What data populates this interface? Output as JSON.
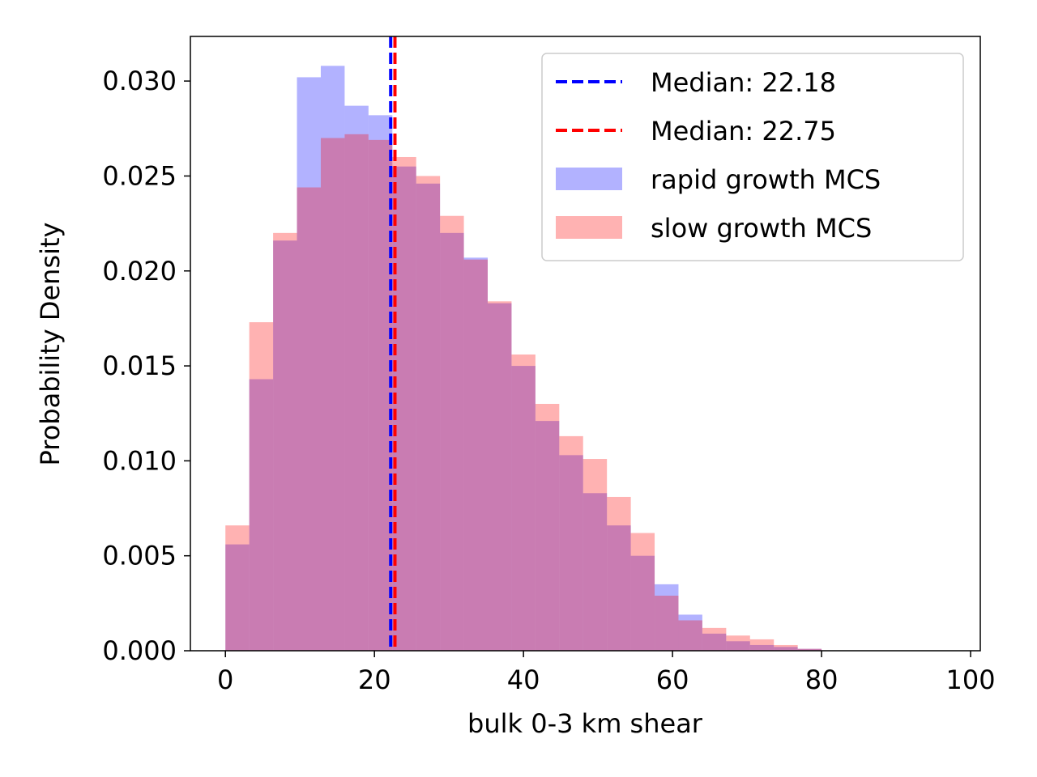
{
  "chart_data": {
    "type": "bar",
    "xlabel": "bulk 0-3 km shear",
    "ylabel": "Probability Density",
    "xlim": [
      -4.7,
      101.3
    ],
    "ylim": [
      0,
      0.03235
    ],
    "xticks": [
      0,
      20,
      40,
      60,
      80,
      100
    ],
    "xtick_labels": [
      "0",
      "20",
      "40",
      "60",
      "80",
      "100"
    ],
    "yticks": [
      0.0,
      0.005,
      0.01,
      0.015,
      0.02,
      0.025,
      0.03
    ],
    "ytick_labels": [
      "0.000",
      "0.005",
      "0.010",
      "0.015",
      "0.020",
      "0.025",
      "0.030"
    ],
    "grid": false,
    "legend_position": "top-right",
    "bin_edges": [
      0,
      3.2,
      6.4,
      9.6,
      12.8,
      16.0,
      19.2,
      22.4,
      25.6,
      28.8,
      32.0,
      35.2,
      38.4,
      41.6,
      44.8,
      48.0,
      51.2,
      54.4,
      57.6,
      60.8,
      64.0,
      67.2,
      70.4,
      73.6,
      76.8,
      80.0
    ],
    "series": [
      {
        "name": "rapid growth MCS",
        "color": "#0000ff",
        "opacity": 0.3,
        "values": [
          0.0056,
          0.0143,
          0.0216,
          0.0302,
          0.0308,
          0.0287,
          0.0282,
          0.0255,
          0.0246,
          0.022,
          0.0207,
          0.0183,
          0.015,
          0.0121,
          0.0103,
          0.0083,
          0.0066,
          0.005,
          0.0035,
          0.0019,
          0.0009,
          0.0005,
          0.0003,
          0.0002,
          0.0001
        ]
      },
      {
        "name": "slow growth MCS",
        "color": "#ff0000",
        "opacity": 0.3,
        "values": [
          0.0066,
          0.0173,
          0.022,
          0.0244,
          0.027,
          0.0272,
          0.0269,
          0.026,
          0.025,
          0.0229,
          0.0206,
          0.0184,
          0.0156,
          0.013,
          0.0113,
          0.0101,
          0.0081,
          0.0062,
          0.0029,
          0.0016,
          0.0012,
          0.0008,
          0.0006,
          0.0003,
          0.0001
        ]
      }
    ],
    "medians": [
      {
        "label": "Median: 22.18",
        "value": 22.18,
        "color": "#0000ff"
      },
      {
        "label": "Median: 22.75",
        "value": 22.75,
        "color": "#ff0000"
      }
    ],
    "legend": [
      {
        "label": "Median: 22.18",
        "kind": "dashed-line",
        "color": "#0000ff"
      },
      {
        "label": "Median: 22.75",
        "kind": "dashed-line",
        "color": "#ff0000"
      },
      {
        "label": "rapid growth MCS",
        "kind": "patch",
        "color": "#0000ff"
      },
      {
        "label": "slow growth MCS",
        "kind": "patch",
        "color": "#ff0000"
      }
    ]
  }
}
